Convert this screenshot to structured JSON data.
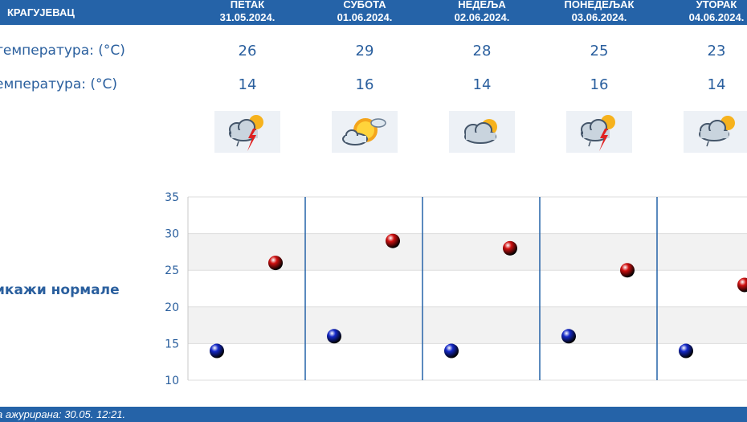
{
  "header": {
    "city": "КРАГУЈЕВАЦ"
  },
  "days": [
    {
      "name": "ПЕТАК",
      "date": "31.05.2024.",
      "max": "26",
      "min": "14",
      "icon": "storm-partly-cloudy-icon"
    },
    {
      "name": "СУБОТА",
      "date": "01.06.2024.",
      "max": "29",
      "min": "16",
      "icon": "sun-cloud-icon"
    },
    {
      "name": "НЕДЕЉА",
      "date": "02.06.2024.",
      "max": "28",
      "min": "14",
      "icon": "partly-cloudy-icon"
    },
    {
      "name": "ПОНЕДЕЉАК",
      "date": "03.06.2024.",
      "max": "25",
      "min": "16",
      "icon": "storm-partly-cloudy-icon"
    },
    {
      "name": "УТОРАК",
      "date": "04.06.2024.",
      "max": "23",
      "min": "14",
      "icon": "rain-partly-cloudy-icon"
    }
  ],
  "rows": {
    "max_label": "температура: (°C)",
    "min_label": "емпература: (°C)",
    "icon_label": ":"
  },
  "normals_link": "икажи нормале",
  "chart_data": {
    "type": "scatter",
    "ylim": [
      10,
      35
    ],
    "yticks": [
      "35",
      "30",
      "25",
      "20",
      "15",
      "10"
    ],
    "series": [
      {
        "values": [
          14,
          16,
          14,
          16,
          14
        ],
        "color": "#1428c8"
      },
      {
        "values": [
          26,
          29,
          28,
          25,
          23
        ],
        "color": "#d01010"
      }
    ]
  },
  "footer": {
    "updated": "а ажурирана:  30.05. 12:21."
  },
  "colors": {
    "bar": "#2563a8",
    "text": "#2a5f9e",
    "band": "#f2f2f2"
  }
}
